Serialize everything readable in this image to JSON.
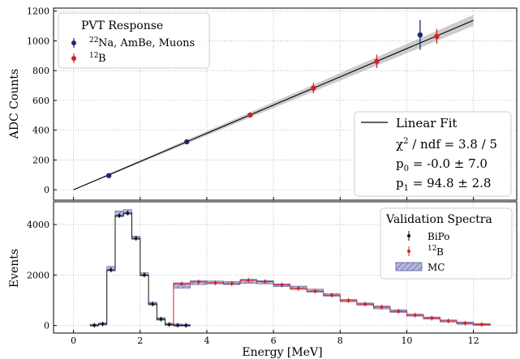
{
  "chart_data": [
    {
      "type": "scatter",
      "ylabel": "ADC Counts",
      "xlim": [
        -0.6,
        13.3
      ],
      "ylim": [
        -70,
        1220
      ],
      "yticks": [
        0,
        200,
        400,
        600,
        800,
        1000,
        1200
      ],
      "grid": true,
      "legend": {
        "title": "PVT Response",
        "placement": "top-left",
        "entries": [
          {
            "sup": "22",
            "text": "Na, AmBe, Muons",
            "color": "#1f2a6b"
          },
          {
            "sup": "12",
            "text": "B",
            "color": "#d62020"
          }
        ]
      },
      "fit_box": {
        "placement": "bottom-right",
        "label": "Linear Fit",
        "chi2_base": "χ",
        "chi2_sup": "2",
        "chi2_rest": " / ndf = 3.8 / 5",
        "p0_base": "p",
        "p0_sub": "0",
        "p0_rest": " = -0.0 ± 7.0",
        "p1_base": "p",
        "p1_sub": "1",
        "p1_rest": " = 94.8 ± 2.8"
      },
      "fit": {
        "p0": 0.0,
        "p1": 94.8,
        "x_range": [
          0.0,
          12.0
        ],
        "band_color": "#9a9a9a"
      },
      "series": [
        {
          "color": "#1f2a6b",
          "points": [
            {
              "x": 1.06,
              "y": 95,
              "err": 6
            },
            {
              "x": 3.4,
              "y": 322,
              "err": 8
            },
            {
              "x": 10.4,
              "y": 1040,
              "err": 100
            }
          ]
        },
        {
          "color": "#d62020",
          "points": [
            {
              "x": 5.3,
              "y": 502,
              "err": 12
            },
            {
              "x": 7.2,
              "y": 683,
              "err": 35
            },
            {
              "x": 9.1,
              "y": 862,
              "err": 45
            },
            {
              "x": 10.9,
              "y": 1030,
              "err": 50
            }
          ]
        }
      ]
    },
    {
      "type": "histogram",
      "xlabel": "Energy [MeV]",
      "ylabel": "Events",
      "xlim": [
        -0.6,
        13.3
      ],
      "ylim": [
        -300,
        4900
      ],
      "xticks": [
        0,
        2,
        4,
        6,
        8,
        10,
        12
      ],
      "yticks": [
        0,
        2000,
        4000
      ],
      "grid": true,
      "legend": {
        "title": "Validation Spectra",
        "placement": "top-right",
        "entries": [
          {
            "text": "BiPo",
            "color": "#111111"
          },
          {
            "sup": "12",
            "text": "B",
            "color": "#d62020"
          },
          {
            "text": "MC",
            "color": "#8f95c7"
          }
        ]
      },
      "series": [
        {
          "name": "BiPo",
          "color": "#111111",
          "bin_width": 0.25,
          "x": [
            0.625,
            0.875,
            1.125,
            1.375,
            1.625,
            1.875,
            2.125,
            2.375,
            2.625,
            2.875,
            3.125,
            3.375
          ],
          "values": [
            10,
            60,
            2200,
            4350,
            4450,
            3450,
            2000,
            850,
            250,
            40,
            10,
            5
          ],
          "mc": [
            10,
            60,
            2300,
            4500,
            4550,
            3500,
            2050,
            880,
            270,
            50,
            20,
            10
          ]
        },
        {
          "name": "12B",
          "color": "#d62020",
          "bin_width": 0.5,
          "x": [
            3.25,
            3.75,
            4.25,
            4.75,
            5.25,
            5.75,
            6.25,
            6.75,
            7.25,
            7.75,
            8.25,
            8.75,
            9.25,
            9.75,
            10.25,
            10.75,
            11.25,
            11.75,
            12.25
          ],
          "values": [
            1650,
            1730,
            1690,
            1660,
            1790,
            1740,
            1610,
            1470,
            1360,
            1200,
            990,
            850,
            730,
            560,
            410,
            290,
            180,
            90,
            40
          ],
          "mc": [
            1520,
            1660,
            1720,
            1700,
            1710,
            1690,
            1580,
            1520,
            1400,
            1220,
            980,
            840,
            700,
            580,
            410,
            300,
            180,
            100,
            40
          ]
        }
      ]
    }
  ]
}
